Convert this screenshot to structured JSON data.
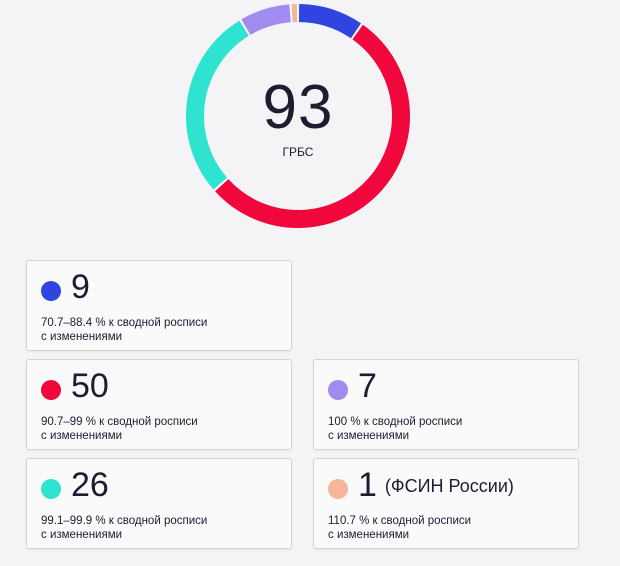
{
  "summary": {
    "total": "93",
    "unit": "ГРБС"
  },
  "chart_data": {
    "type": "pie",
    "donut": true,
    "center_value": 93,
    "center_label": "ГРБС",
    "series": [
      {
        "name": "70.7–88.4 % к сводной росписи с изменениями",
        "value": 9,
        "color": "#2f44e0"
      },
      {
        "name": "90.7–99 % к сводной росписи с изменениями",
        "value": 50,
        "color": "#f0073b"
      },
      {
        "name": "99.1–99.9 % к сводной росписи с изменениями",
        "value": 26,
        "color": "#2ee3cf"
      },
      {
        "name": "100 % к сводной росписи с изменениями",
        "value": 7,
        "color": "#a18bf0"
      },
      {
        "name": "110.7 % к сводной росписи с изменениями",
        "value": 1,
        "color": "#f7b59a"
      }
    ]
  },
  "cards": [
    {
      "count": "9",
      "note": "",
      "range": "70.7–88.4 % к сводной росписи",
      "suffix": "с изменениями",
      "color": "#2f44e0"
    },
    {
      "count": "50",
      "note": "",
      "range": "90.7–99 % к сводной росписи",
      "suffix": "с изменениями",
      "color": "#f0073b"
    },
    {
      "count": "7",
      "note": "",
      "range": "100 % к сводной росписи",
      "suffix": "с изменениями",
      "color": "#a18bf0"
    },
    {
      "count": "26",
      "note": "",
      "range": "99.1–99.9 % к сводной росписи",
      "suffix": "с изменениями",
      "color": "#2ee3cf"
    },
    {
      "count": "1",
      "note": "(ФСИН России)",
      "range": "110.7 % к сводной росписи",
      "suffix": "с изменениями",
      "color": "#f7b59a"
    }
  ]
}
